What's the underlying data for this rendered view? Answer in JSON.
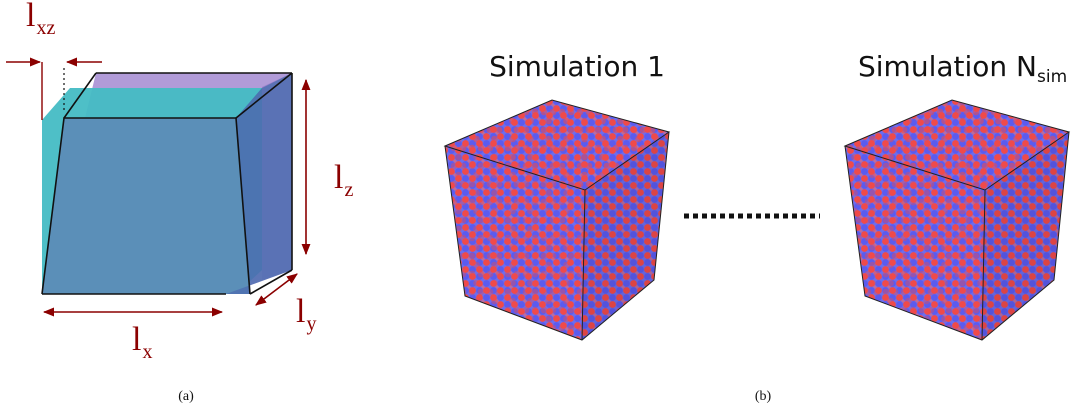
{
  "panel_a": {
    "label_lxz_main": "l",
    "label_lxz_sub": "xz",
    "label_lx_main": "l",
    "label_lx_sub": "x",
    "label_ly_main": "l",
    "label_ly_sub": "y",
    "label_lz_main": "l",
    "label_lz_sub": "z",
    "caption": "(a)"
  },
  "panel_b": {
    "sim1_title": "Simulation 1",
    "simN_title_main": "Simulation N",
    "simN_title_sub": "sim",
    "caption": "(b)"
  },
  "colors": {
    "dim_arrow": "#8b0000",
    "atom_red": "#ef4a4a",
    "atom_blue": "#5b5bef",
    "box_front": "#5b8fb8",
    "box_cyan": "#45bcc4",
    "box_purple": "#a890d4"
  }
}
